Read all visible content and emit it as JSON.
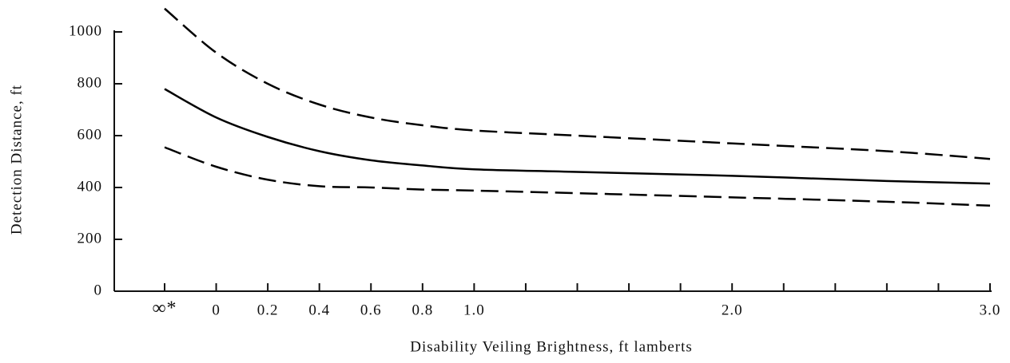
{
  "chart_data": {
    "type": "line",
    "xlabel": "Disability Veiling Brightness, ft lamberts",
    "ylabel": "Detection Distance, ft",
    "xlim": [
      -0.2,
      3.0
    ],
    "ylim": [
      0,
      1000
    ],
    "yticks": [
      0,
      200,
      400,
      600,
      800,
      1000
    ],
    "xticks": [
      {
        "value": -0.2,
        "label": "∞*"
      },
      0,
      {
        "value": 0.2,
        "label": "0.2"
      },
      {
        "value": 0.4,
        "label": "0.4"
      },
      {
        "value": 0.6,
        "label": "0.6"
      },
      {
        "value": 0.8,
        "label": "0.8"
      },
      {
        "value": 1.0,
        "label": "1.0"
      },
      {
        "value": 2.0,
        "label": "2.0"
      },
      {
        "value": 3.0,
        "label": "3.0"
      }
    ],
    "minor_xticks": [
      1.2,
      1.4,
      1.6,
      1.8,
      2.2,
      2.4,
      2.6,
      2.8
    ],
    "x": [
      -0.2,
      0,
      0.2,
      0.4,
      0.6,
      0.8,
      1.0,
      1.4,
      2.0,
      2.6,
      3.0
    ],
    "series": [
      {
        "color": "#000000",
        "style": "dashed",
        "values": [
          1090,
          920,
          800,
          720,
          670,
          640,
          620,
          600,
          570,
          540,
          510
        ]
      },
      {
        "color": "#000000",
        "style": "solid",
        "values": [
          780,
          670,
          595,
          540,
          505,
          485,
          470,
          460,
          445,
          425,
          415
        ]
      },
      {
        "color": "#000000",
        "style": "dashed",
        "values": [
          555,
          480,
          430,
          405,
          400,
          392,
          388,
          378,
          362,
          345,
          330
        ]
      }
    ]
  }
}
